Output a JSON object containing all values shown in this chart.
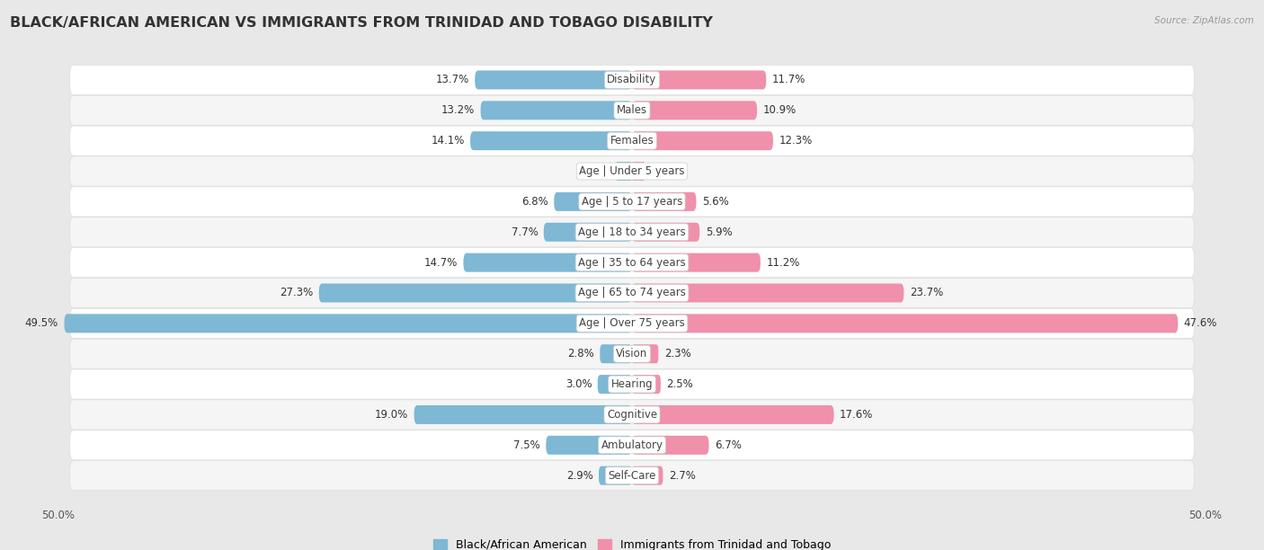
{
  "title": "BLACK/AFRICAN AMERICAN VS IMMIGRANTS FROM TRINIDAD AND TOBAGO DISABILITY",
  "source": "Source: ZipAtlas.com",
  "categories": [
    "Disability",
    "Males",
    "Females",
    "Age | Under 5 years",
    "Age | 5 to 17 years",
    "Age | 18 to 34 years",
    "Age | 35 to 64 years",
    "Age | 65 to 74 years",
    "Age | Over 75 years",
    "Vision",
    "Hearing",
    "Cognitive",
    "Ambulatory",
    "Self-Care"
  ],
  "left_values": [
    13.7,
    13.2,
    14.1,
    1.4,
    6.8,
    7.7,
    14.7,
    27.3,
    49.5,
    2.8,
    3.0,
    19.0,
    7.5,
    2.9
  ],
  "right_values": [
    11.7,
    10.9,
    12.3,
    1.1,
    5.6,
    5.9,
    11.2,
    23.7,
    47.6,
    2.3,
    2.5,
    17.6,
    6.7,
    2.7
  ],
  "left_color": "#7eb8d4",
  "right_color": "#f090aa",
  "left_label": "Black/African American",
  "right_label": "Immigrants from Trinidad and Tobago",
  "axis_max": 50.0,
  "background_color": "#e8e8e8",
  "row_color_odd": "#f5f5f5",
  "row_color_even": "#ffffff",
  "title_fontsize": 11.5,
  "label_fontsize": 8.5,
  "value_fontsize": 8.5,
  "tick_fontsize": 8.5
}
